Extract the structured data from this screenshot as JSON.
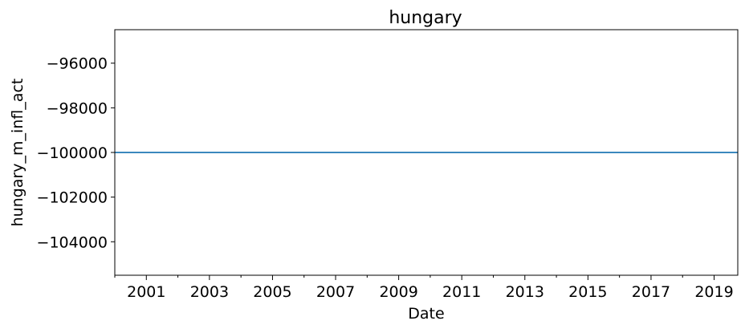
{
  "chart_data": {
    "type": "line",
    "title": "hungary",
    "xlabel": "Date",
    "ylabel": "hungary_m_infl_act",
    "xlim": [
      "2000-01",
      "2019-10"
    ],
    "ylim": [
      -105500,
      -94500
    ],
    "x_ticks": [
      "2001",
      "2003",
      "2005",
      "2007",
      "2009",
      "2011",
      "2013",
      "2015",
      "2017",
      "2019"
    ],
    "x_minor_ticks": [
      "2000",
      "2002",
      "2004",
      "2006",
      "2008",
      "2010",
      "2012",
      "2014",
      "2016",
      "2018"
    ],
    "y_ticks": [
      -96000,
      -98000,
      -100000,
      -102000,
      -104000
    ],
    "y_tick_labels": [
      "−96000",
      "−98000",
      "−100000",
      "−102000",
      "−104000"
    ],
    "grid": false,
    "series": [
      {
        "color": "#1f77b4",
        "x": [
          "2000-01",
          "2019-10"
        ],
        "values": [
          -100000,
          -100000
        ]
      }
    ]
  }
}
